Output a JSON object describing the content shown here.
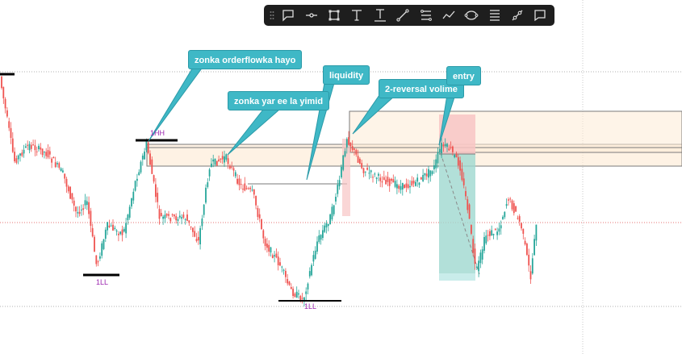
{
  "drawing_toolbar": {
    "tools": [
      {
        "name": "callout-tool-icon",
        "title": "Callout"
      },
      {
        "name": "horizontal-line-tool-icon",
        "title": "Horizontal ray"
      },
      {
        "name": "rectangle-tool-icon",
        "title": "Rectangle"
      },
      {
        "name": "text-tool-icon",
        "title": "Text"
      },
      {
        "name": "anchored-text-tool-icon",
        "title": "Anchored text"
      },
      {
        "name": "trend-line-tool-icon",
        "title": "Trend line"
      },
      {
        "name": "parallel-channel-tool-icon",
        "title": "Parallel channel"
      },
      {
        "name": "path-tool-icon",
        "title": "Path"
      },
      {
        "name": "ellipse-tool-icon",
        "title": "Ellipse"
      },
      {
        "name": "fib-retracement-tool-icon",
        "title": "Fib retracement"
      },
      {
        "name": "line-segment-tool-icon",
        "title": "Line"
      },
      {
        "name": "comment-tool-icon",
        "title": "Comment"
      }
    ]
  },
  "callouts": {
    "orderflow": "zonka orderflowka hayo",
    "zone": "zonka yar ee la yimid",
    "liquidity": "liquidity",
    "reversal": "2-reversal volime",
    "entry": "entry"
  },
  "swing_labels": {
    "hh": "1HH",
    "ll_left": "1LL",
    "ll_mid": "1LL"
  },
  "colors": {
    "bull": "#26a69a",
    "bear": "#ef5350",
    "callout_bg": "#3fb8c6",
    "zone_fill": "#fdebd6",
    "stop_zone": "#f8c4c4",
    "target_zone": "#9fd8cf",
    "label_purple": "#9c27b0",
    "toolbar_bg": "#1e1e1e"
  }
}
